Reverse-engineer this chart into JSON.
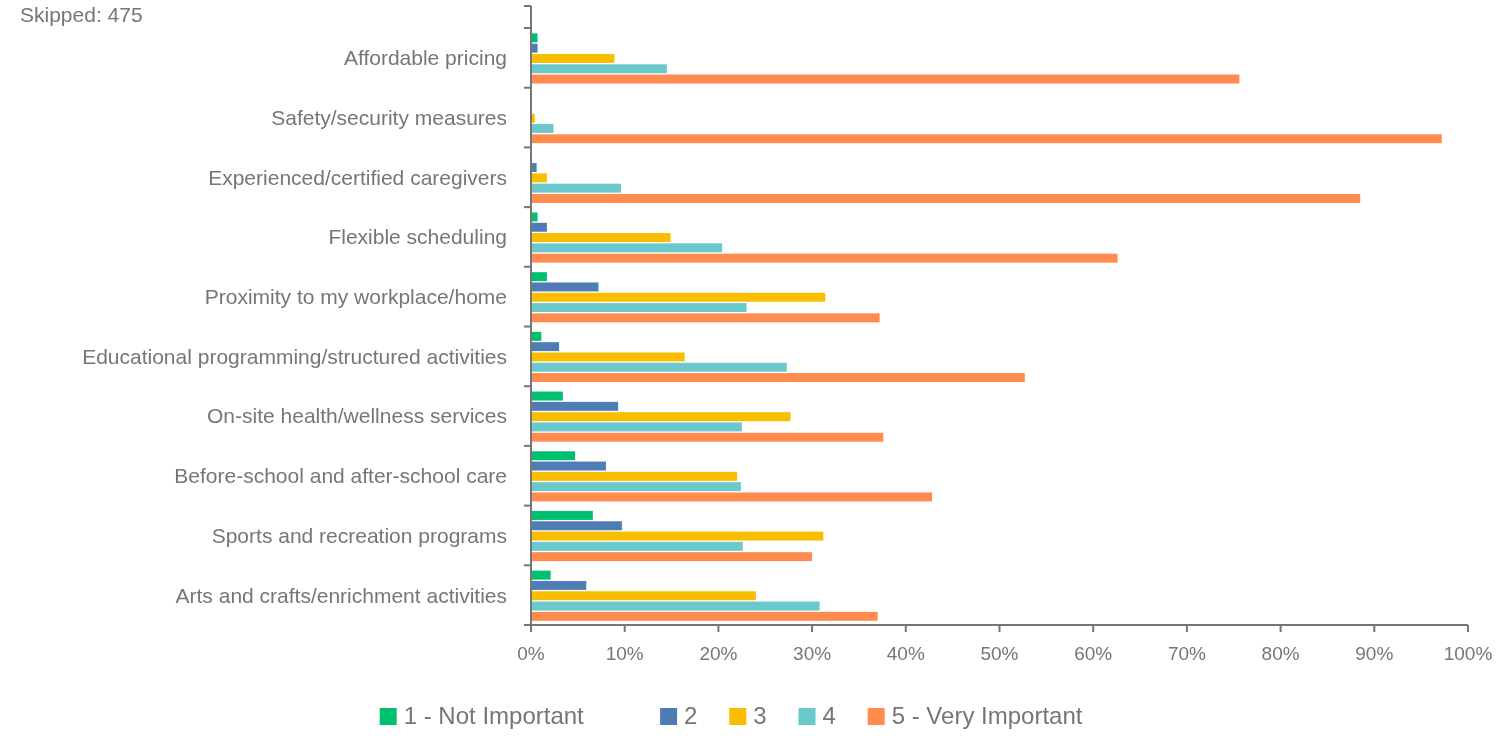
{
  "chart_data": {
    "type": "bar",
    "orientation": "horizontal",
    "annotations": [
      "Skipped: 475"
    ],
    "categories": [
      "Affordable pricing",
      "Safety/security measures",
      "Experienced/certified caregivers",
      "Flexible scheduling",
      "Proximity to my workplace/home",
      "Educational programming/structured activities",
      "On-site health/wellness services",
      "Before-school and after-school care",
      "Sports and recreation programs",
      "Arts and crafts/enrichment activities"
    ],
    "series": [
      {
        "name": "1 - Not Important",
        "color": "#00bf6f",
        "values": [
          0.7,
          0,
          0,
          0.7,
          1.7,
          1.1,
          3.4,
          4.7,
          6.6,
          2.1
        ]
      },
      {
        "name": "2",
        "color": "#507cb6",
        "values": [
          0.7,
          0,
          0.6,
          1.7,
          7.2,
          3.0,
          9.3,
          8.0,
          9.7,
          5.9
        ]
      },
      {
        "name": "3",
        "color": "#f9be00",
        "values": [
          8.9,
          0.4,
          1.7,
          14.9,
          31.4,
          16.4,
          27.7,
          22.0,
          31.2,
          24.0
        ]
      },
      {
        "name": "4",
        "color": "#6bc8cd",
        "values": [
          14.5,
          2.4,
          9.6,
          20.4,
          23.0,
          27.3,
          22.5,
          22.4,
          22.6,
          30.8
        ]
      },
      {
        "name": "5 - Very Important",
        "color": "#ff8b4f",
        "values": [
          75.6,
          97.2,
          88.5,
          62.6,
          37.2,
          52.7,
          37.6,
          42.8,
          30.0,
          37.0
        ]
      }
    ],
    "xlim": [
      0,
      100
    ],
    "xticks": [
      {
        "value": 0,
        "label": "0%"
      },
      {
        "value": 10,
        "label": "10%"
      },
      {
        "value": 20,
        "label": "20%"
      },
      {
        "value": 30,
        "label": "30%"
      },
      {
        "value": 40,
        "label": "40%"
      },
      {
        "value": 50,
        "label": "50%"
      },
      {
        "value": 60,
        "label": "60%"
      },
      {
        "value": 70,
        "label": "70%"
      },
      {
        "value": 80,
        "label": "80%"
      },
      {
        "value": 90,
        "label": "90%"
      },
      {
        "value": 100,
        "label": "100%"
      }
    ],
    "grid": false,
    "legend": "bottom"
  }
}
